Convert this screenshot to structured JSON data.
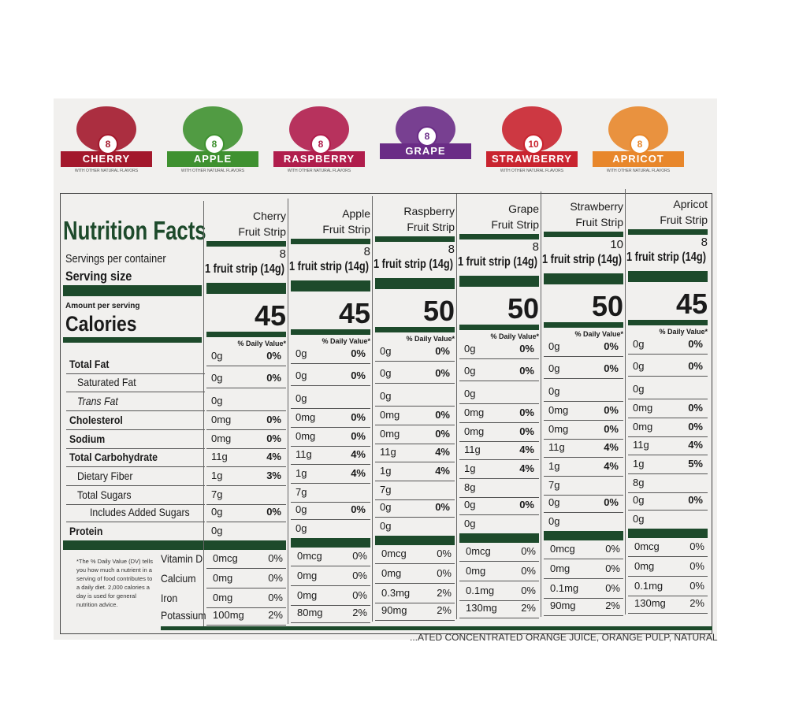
{
  "flavors": [
    {
      "name": "CHERRY",
      "count": "8",
      "note": "WITH OTHER NATURAL FLAVORS",
      "color": "#a3182c"
    },
    {
      "name": "APPLE",
      "count": "8",
      "note": "WITH OTHER NATURAL FLAVORS",
      "color": "#3f9130"
    },
    {
      "name": "RASPBERRY",
      "count": "8",
      "note": "WITH OTHER NATURAL FLAVORS",
      "color": "#b01d4c"
    },
    {
      "name": "GRAPE",
      "count": "8",
      "color": "#6a2c86"
    },
    {
      "name": "STRAWBERRY",
      "count": "10",
      "note": "WITH OTHER NATURAL FLAVORS",
      "color": "#c9242f"
    },
    {
      "name": "APRICOT",
      "count": "8",
      "note": "WITH OTHER NATURAL FLAVORS",
      "color": "#e8872b"
    }
  ],
  "facts": {
    "title": "Nutrition Facts",
    "servings_label": "Servings per container",
    "serving_size_label": "Serving size",
    "amount_label": "Amount per serving",
    "calories_label": "Calories",
    "nutrient_labels": [
      "Total Fat",
      "Saturated Fat",
      "Trans Fat",
      "Cholesterol",
      "Sodium",
      "Total Carbohydrate",
      "Dietary Fiber",
      "Total Sugars",
      "Includes Added Sugars",
      "Protein"
    ],
    "vitamin_labels": [
      "Vitamin D",
      "Calcium",
      "Iron",
      "Potassium"
    ],
    "footnote": "*The % Daily Value (DV) tells you how much a nutrient in a serving of food contributes to a daily diet. 2,000 calories a day is used for general nutrition advice.",
    "columns": [
      {
        "name": "Cherry",
        "suffix": "Fruit Strip",
        "servings": "8",
        "serving_size": "1 fruit strip (14g)",
        "calories": "45",
        "dv_header": "% Daily Value*",
        "nutrients": [
          [
            "0g",
            "0%"
          ],
          [
            "0g",
            "0%"
          ],
          [
            "0g"
          ],
          [
            "0mg",
            "0%"
          ],
          [
            "0mg",
            "0%"
          ],
          [
            "11g",
            "4%"
          ],
          [
            "1g",
            "3%"
          ],
          [
            "7g"
          ],
          [
            "0g",
            "0%"
          ],
          [
            "0g"
          ]
        ],
        "vitamins": [
          [
            "0mcg",
            "0%"
          ],
          [
            "0mg",
            "0%"
          ],
          [
            "0mg",
            "0%"
          ],
          [
            "100mg",
            "2%"
          ]
        ]
      },
      {
        "name": "Apple",
        "suffix": "Fruit Strip",
        "servings": "8",
        "serving_size": "1 fruit strip (14g)",
        "calories": "45",
        "dv_header": "% Daily Value*",
        "nutrients": [
          [
            "0g",
            "0%"
          ],
          [
            "0g",
            "0%"
          ],
          [
            "0g"
          ],
          [
            "0mg",
            "0%"
          ],
          [
            "0mg",
            "0%"
          ],
          [
            "11g",
            "4%"
          ],
          [
            "1g",
            "4%"
          ],
          [
            "7g"
          ],
          [
            "0g",
            "0%"
          ],
          [
            "0g"
          ]
        ],
        "vitamins": [
          [
            "0mcg",
            "0%"
          ],
          [
            "0mg",
            "0%"
          ],
          [
            "0mg",
            "0%"
          ],
          [
            "80mg",
            "2%"
          ]
        ]
      },
      {
        "name": "Raspberry",
        "suffix": "Fruit Strip",
        "servings": "8",
        "serving_size": "1 fruit strip (14g)",
        "calories": "50",
        "dv_header": "% Daily Value*",
        "nutrients": [
          [
            "0g",
            "0%"
          ],
          [
            "0g",
            "0%"
          ],
          [
            "0g"
          ],
          [
            "0mg",
            "0%"
          ],
          [
            "0mg",
            "0%"
          ],
          [
            "11g",
            "4%"
          ],
          [
            "1g",
            "4%"
          ],
          [
            "7g"
          ],
          [
            "0g",
            "0%"
          ],
          [
            "0g"
          ]
        ],
        "vitamins": [
          [
            "0mcg",
            "0%"
          ],
          [
            "0mg",
            "0%"
          ],
          [
            "0.3mg",
            "2%"
          ],
          [
            "90mg",
            "2%"
          ]
        ]
      },
      {
        "name": "Grape",
        "suffix": "Fruit Strip",
        "servings": "8",
        "serving_size": "1 fruit strip (14g)",
        "calories": "50",
        "dv_header": "% Daily Value*",
        "nutrients": [
          [
            "0g",
            "0%"
          ],
          [
            "0g",
            "0%"
          ],
          [
            "0g"
          ],
          [
            "0mg",
            "0%"
          ],
          [
            "0mg",
            "0%"
          ],
          [
            "11g",
            "4%"
          ],
          [
            "1g",
            "4%"
          ],
          [
            "8g"
          ],
          [
            "0g",
            "0%"
          ],
          [
            "0g"
          ]
        ],
        "vitamins": [
          [
            "0mcg",
            "0%"
          ],
          [
            "0mg",
            "0%"
          ],
          [
            "0.1mg",
            "0%"
          ],
          [
            "130mg",
            "2%"
          ]
        ]
      },
      {
        "name": "Strawberry",
        "suffix": "Fruit Strip",
        "servings": "10",
        "serving_size": "1 fruit strip (14g)",
        "calories": "50",
        "dv_header": "% Daily Value*",
        "nutrients": [
          [
            "0g",
            "0%"
          ],
          [
            "0g",
            "0%"
          ],
          [
            "0g"
          ],
          [
            "0mg",
            "0%"
          ],
          [
            "0mg",
            "0%"
          ],
          [
            "11g",
            "4%"
          ],
          [
            "1g",
            "4%"
          ],
          [
            "7g"
          ],
          [
            "0g",
            "0%"
          ],
          [
            "0g"
          ]
        ],
        "vitamins": [
          [
            "0mcg",
            "0%"
          ],
          [
            "0mg",
            "0%"
          ],
          [
            "0.1mg",
            "0%"
          ],
          [
            "90mg",
            "2%"
          ]
        ]
      },
      {
        "name": "Apricot",
        "suffix": "Fruit Strip",
        "servings": "8",
        "serving_size": "1 fruit strip (14g)",
        "calories": "45",
        "dv_header": "% Daily Value*",
        "nutrients": [
          [
            "0g",
            "0%"
          ],
          [
            "0g",
            "0%"
          ],
          [
            "0g"
          ],
          [
            "0mg",
            "0%"
          ],
          [
            "0mg",
            "0%"
          ],
          [
            "11g",
            "4%"
          ],
          [
            "1g",
            "5%"
          ],
          [
            "8g"
          ],
          [
            "0g",
            "0%"
          ],
          [
            "0g"
          ]
        ],
        "vitamins": [
          [
            "0mcg",
            "0%"
          ],
          [
            "0mg",
            "0%"
          ],
          [
            "0.1mg",
            "0%"
          ],
          [
            "130mg",
            "2%"
          ]
        ]
      }
    ]
  },
  "bottom_text": "...ATED CONCENTRATED ORANGE JUICE, ORANGE PULP, NATURAL"
}
